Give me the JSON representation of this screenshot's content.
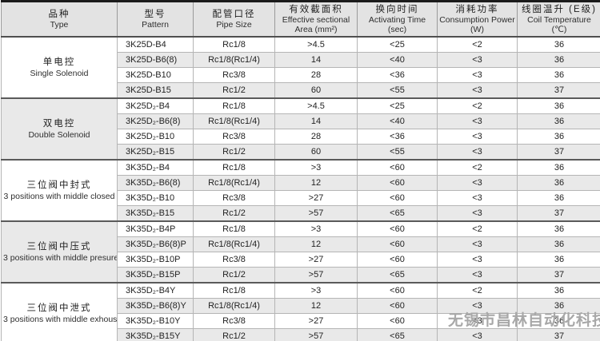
{
  "watermark": {
    "text": "无锡市昌林自动化科技"
  },
  "colors": {
    "header_bg": "#e3e3e3",
    "stripe_bg": "#e9e9e9",
    "border_dark": "#4f4f4f",
    "border_light": "#b5b5b5",
    "watermark": "#a8a8a8"
  },
  "table": {
    "columns": [
      {
        "zh": "品种",
        "en": "Type",
        "unit": ""
      },
      {
        "zh": "型号",
        "en": "Pattern",
        "unit": ""
      },
      {
        "zh": "配管口径",
        "en": "Pipe Size",
        "unit": ""
      },
      {
        "zh": "有效截面积",
        "en": "Effective sectional",
        "unit": "Area (mm²)"
      },
      {
        "zh": "换向时间",
        "en": "Activating Time",
        "unit": "(sec)"
      },
      {
        "zh": "消耗功率",
        "en": "Consumption Power",
        "unit": "(W)"
      },
      {
        "zh": "线圈温升 (E级)",
        "en": "Coil Temperature",
        "unit": "(℃)"
      }
    ],
    "groups": [
      {
        "type_zh": "单电控",
        "type_en": "Single Solenoid",
        "rows": [
          [
            "3K25D-B4",
            "Rc1/8",
            ">4.5",
            "<25",
            "<2",
            "36"
          ],
          [
            "3K25D-B6(8)",
            "Rc1/8(Rc1/4)",
            "14",
            "<40",
            "<3",
            "36"
          ],
          [
            "3K25D-B10",
            "Rc3/8",
            "28",
            "<36",
            "<3",
            "36"
          ],
          [
            "3K25D-B15",
            "Rc1/2",
            "60",
            "<55",
            "<3",
            "37"
          ]
        ]
      },
      {
        "type_zh": "双电控",
        "type_en": "Double Solenoid",
        "rows": [
          [
            "3K25D₂-B4",
            "Rc1/8",
            ">4.5",
            "<25",
            "<2",
            "36"
          ],
          [
            "3K25D₂-B6(8)",
            "Rc1/8(Rc1/4)",
            "14",
            "<40",
            "<3",
            "36"
          ],
          [
            "3K25D₂-B10",
            "Rc3/8",
            "28",
            "<36",
            "<3",
            "36"
          ],
          [
            "3K25D₂-B15",
            "Rc1/2",
            "60",
            "<55",
            "<3",
            "37"
          ]
        ]
      },
      {
        "type_zh": "三位阀中封式",
        "type_en": "3 positions with middle closed",
        "rows": [
          [
            "3K35D₂-B4",
            "Rc1/8",
            ">3",
            "<60",
            "<2",
            "36"
          ],
          [
            "3K35D₂-B6(8)",
            "Rc1/8(Rc1/4)",
            "12",
            "<60",
            "<3",
            "36"
          ],
          [
            "3K35D₂-B10",
            "Rc3/8",
            ">27",
            "<60",
            "<3",
            "36"
          ],
          [
            "3K35D₂-B15",
            "Rc1/2",
            ">57",
            "<65",
            "<3",
            "37"
          ]
        ]
      },
      {
        "type_zh": "三位阀中压式",
        "type_en": "3 positions with middle  presure",
        "rows": [
          [
            "3K35D₂-B4P",
            "Rc1/8",
            ">3",
            "<60",
            "<2",
            "36"
          ],
          [
            "3K35D₂-B6(8)P",
            "Rc1/8(Rc1/4)",
            "12",
            "<60",
            "<3",
            "36"
          ],
          [
            "3K35D₂-B10P",
            "Rc3/8",
            ">27",
            "<60",
            "<3",
            "36"
          ],
          [
            "3K35D₂-B15P",
            "Rc1/2",
            ">57",
            "<65",
            "<3",
            "37"
          ]
        ]
      },
      {
        "type_zh": "三位阀中泄式",
        "type_en": "3 positions with middle exhoust",
        "rows": [
          [
            "3K35D₂-B4Y",
            "Rc1/8",
            ">3",
            "<60",
            "<2",
            "36"
          ],
          [
            "3K35D₂-B6(8)Y",
            "Rc1/8(Rc1/4)",
            "12",
            "<60",
            "<3",
            "36"
          ],
          [
            "3K35D₂-B10Y",
            "Rc3/8",
            ">27",
            "<60",
            "<3",
            "36"
          ],
          [
            "3K35D₂-B15Y",
            "Rc1/2",
            ">57",
            "<65",
            "<3",
            "37"
          ]
        ]
      }
    ]
  }
}
